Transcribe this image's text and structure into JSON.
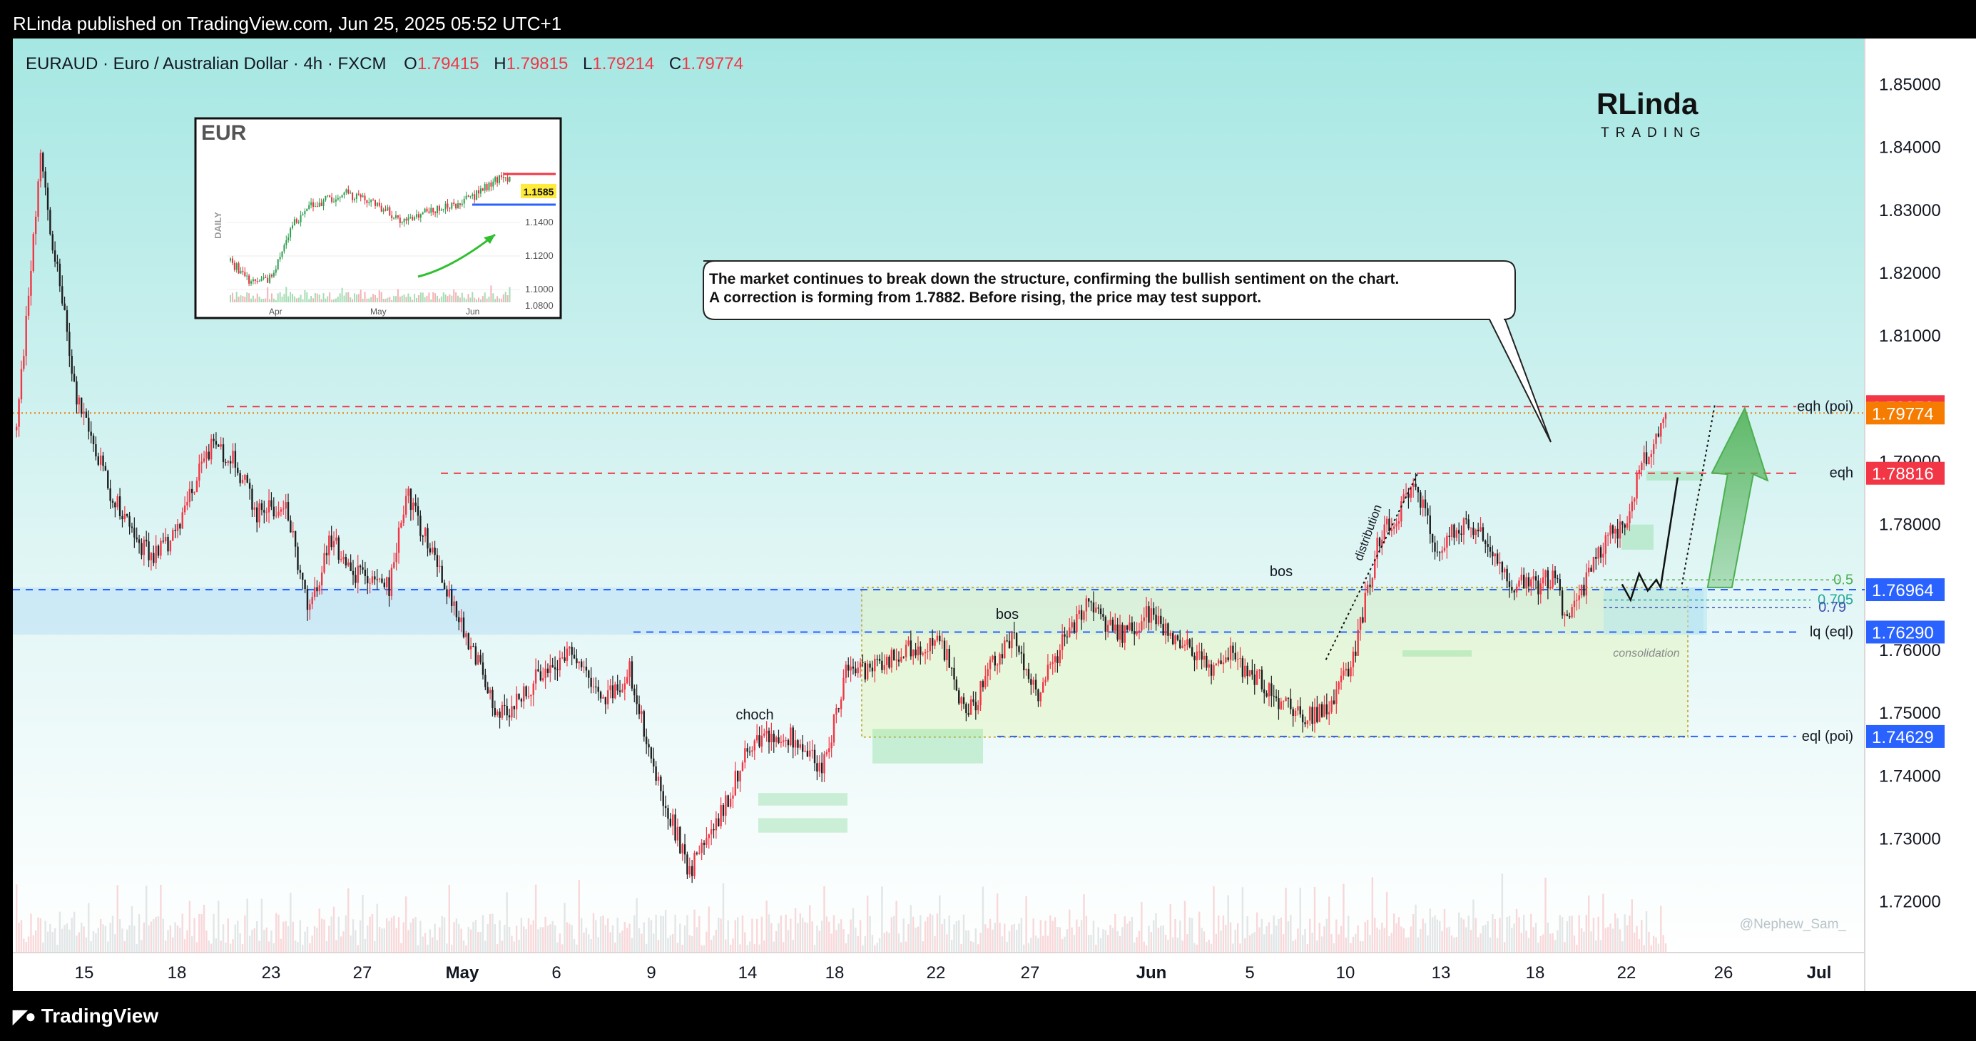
{
  "header": {
    "published": "RLinda published on TradingView.com, Jun 25, 2025 05:52 UTC+1"
  },
  "footer": {
    "brand": "TradingView",
    "logo_icon": "tradingview-logo-icon"
  },
  "legend": {
    "symbol_text": "EURAUD · Euro / Australian Dollar · 4h · FXCM",
    "o_label": "O",
    "o": "1.79415",
    "h_label": "H",
    "h": "1.79815",
    "l_label": "L",
    "l": "1.79214",
    "c_label": "C",
    "c": "1.79774"
  },
  "brand": {
    "top": "RLinda",
    "bottom": "TRADING"
  },
  "watermark": "@Nephew_Sam_",
  "callout": {
    "line1": "The market continues to break down the structure, confirming the bullish sentiment on the chart.",
    "line2": "A correction is forming from 1.7882. Before rising, the price may test support."
  },
  "inset": {
    "title": "EUR",
    "side_label": "DAILY",
    "y_ticks": [
      "1.1400",
      "1.1200",
      "1.1000",
      "1.0800"
    ],
    "x_ticks": [
      "Apr",
      "May",
      "Jun"
    ],
    "price_tag": "1.1585"
  },
  "colors": {
    "bull": "#f23645",
    "bear": "#1e1e1e",
    "level_red": "#f23645",
    "level_blue": "#2962ff",
    "last_price": "#f57c00",
    "zone_green": "#4caf50"
  },
  "chart_data": {
    "type": "candlestick",
    "title": "EURAUD · Euro / Australian Dollar · 4h · FXCM",
    "ylim": [
      1.716,
      1.853
    ],
    "y_ticks": [
      "1.85000",
      "1.84000",
      "1.83000",
      "1.82000",
      "1.81000",
      "1.79000",
      "1.78000",
      "1.76000",
      "1.75000",
      "1.74000",
      "1.73000",
      "1.72000"
    ],
    "x_ticks": [
      "15",
      "18",
      "23",
      "27",
      "May",
      "6",
      "9",
      "14",
      "18",
      "22",
      "27",
      "Jun",
      "5",
      "10",
      "13",
      "18",
      "22",
      "26",
      "Jul"
    ],
    "price_labels": [
      {
        "text": "1.79876",
        "value": 1.79876,
        "color": "#f23645"
      },
      {
        "text": "1.79774",
        "value": 1.79774,
        "color": "#f57c00"
      },
      {
        "text": "1.78816",
        "value": 1.78816,
        "color": "#f23645"
      },
      {
        "text": "1.76964",
        "value": 1.76964,
        "color": "#2962ff"
      },
      {
        "text": "1.76290",
        "value": 1.7629,
        "color": "#2962ff"
      },
      {
        "text": "1.74629",
        "value": 1.74629,
        "color": "#2962ff"
      }
    ],
    "annotations": {
      "eqh_poi": "eqh (poi)",
      "eqh": "eqh",
      "fib_05": "0.5",
      "fib_0705": "0.705",
      "fib_079": "0.79",
      "lq_eql": "lq (eql)",
      "eql_poi": "eql (poi)",
      "bos_1": "bos",
      "bos_2": "bos",
      "choch": "choch",
      "distribution": "distribution",
      "consolidation": "consolidation"
    },
    "waypoints": [
      [
        0,
        1.795
      ],
      [
        10,
        1.838
      ],
      [
        25,
        1.8
      ],
      [
        40,
        1.784
      ],
      [
        55,
        1.775
      ],
      [
        66,
        1.778
      ],
      [
        80,
        1.792
      ],
      [
        90,
        1.791
      ],
      [
        100,
        1.782
      ],
      [
        112,
        1.783
      ],
      [
        122,
        1.766
      ],
      [
        130,
        1.778
      ],
      [
        140,
        1.772
      ],
      [
        155,
        1.77
      ],
      [
        162,
        1.785
      ],
      [
        175,
        1.774
      ],
      [
        190,
        1.76
      ],
      [
        200,
        1.749
      ],
      [
        215,
        1.755
      ],
      [
        230,
        1.76
      ],
      [
        245,
        1.752
      ],
      [
        255,
        1.757
      ],
      [
        265,
        1.741
      ],
      [
        280,
        1.725
      ],
      [
        292,
        1.733
      ],
      [
        305,
        1.745
      ],
      [
        315,
        1.746
      ],
      [
        325,
        1.746
      ],
      [
        335,
        1.741
      ],
      [
        345,
        1.756
      ],
      [
        360,
        1.758
      ],
      [
        375,
        1.761
      ],
      [
        385,
        1.761
      ],
      [
        395,
        1.749
      ],
      [
        405,
        1.757
      ],
      [
        415,
        1.762
      ],
      [
        425,
        1.753
      ],
      [
        435,
        1.761
      ],
      [
        445,
        1.767
      ],
      [
        460,
        1.762
      ],
      [
        470,
        1.766
      ],
      [
        482,
        1.762
      ],
      [
        495,
        1.757
      ],
      [
        505,
        1.759
      ],
      [
        515,
        1.756
      ],
      [
        525,
        1.752
      ],
      [
        535,
        1.749
      ],
      [
        545,
        1.751
      ],
      [
        555,
        1.757
      ],
      [
        567,
        1.778
      ],
      [
        575,
        1.782
      ],
      [
        582,
        1.786
      ],
      [
        590,
        1.776
      ],
      [
        600,
        1.78
      ],
      [
        610,
        1.778
      ],
      [
        620,
        1.771
      ],
      [
        630,
        1.77
      ],
      [
        640,
        1.772
      ],
      [
        645,
        1.764
      ],
      [
        652,
        1.77
      ],
      [
        662,
        1.778
      ],
      [
        670,
        1.78
      ],
      [
        676,
        1.79
      ],
      [
        682,
        1.793
      ],
      [
        686,
        1.7977
      ]
    ],
    "n_candles": 687
  }
}
